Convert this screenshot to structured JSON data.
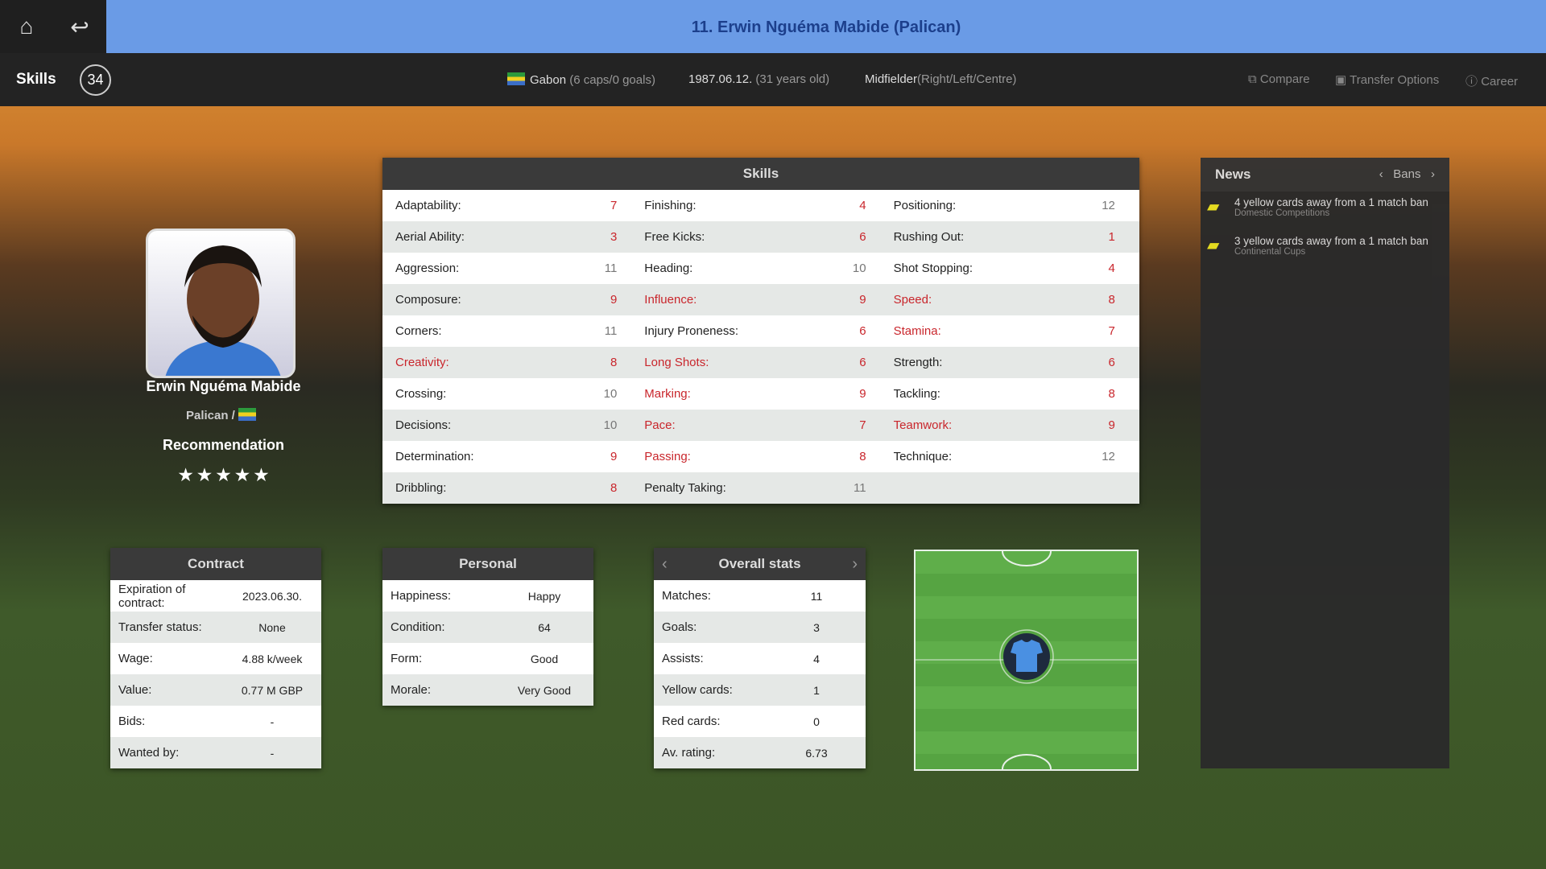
{
  "header": {
    "title": "11. Erwin Nguéma Mabide (Palican)",
    "home_icon": "home-icon",
    "back_icon": "back-icon"
  },
  "subbar": {
    "section": "Skills",
    "rating": "34",
    "nation": "Gabon",
    "nation_detail": "(6 caps/0 goals)",
    "birth": "1987.06.12.",
    "age": "(31 years old)",
    "position": "Midfielder",
    "position_detail": "(Right/Left/Centre)",
    "compare": "Compare",
    "transfer_options": "Transfer Options",
    "career": "Career"
  },
  "player": {
    "name": "Erwin Nguéma Mabide",
    "club": "Palican /",
    "recommendation_label": "Recommendation",
    "stars": 5,
    "star_glyphs": "★ ★ ★ ★ ★"
  },
  "colors": {
    "highlight": "#c9262c",
    "topbar": "#6a9be6"
  },
  "skills": {
    "title": "Skills",
    "rows": [
      [
        {
          "l": "Adaptability:",
          "v": "7",
          "lr": false,
          "vr": true
        },
        {
          "l": "Finishing:",
          "v": "4",
          "lr": false,
          "vr": true
        },
        {
          "l": "Positioning:",
          "v": "12",
          "lr": false,
          "vr": false
        }
      ],
      [
        {
          "l": "Aerial Ability:",
          "v": "3",
          "lr": false,
          "vr": true
        },
        {
          "l": "Free Kicks:",
          "v": "6",
          "lr": false,
          "vr": true
        },
        {
          "l": "Rushing Out:",
          "v": "1",
          "lr": false,
          "vr": true
        }
      ],
      [
        {
          "l": "Aggression:",
          "v": "11",
          "lr": false,
          "vr": false
        },
        {
          "l": "Heading:",
          "v": "10",
          "lr": false,
          "vr": false
        },
        {
          "l": "Shot Stopping:",
          "v": "4",
          "lr": false,
          "vr": true
        }
      ],
      [
        {
          "l": "Composure:",
          "v": "9",
          "lr": false,
          "vr": true
        },
        {
          "l": "Influence:",
          "v": "9",
          "lr": true,
          "vr": true
        },
        {
          "l": "Speed:",
          "v": "8",
          "lr": true,
          "vr": true
        }
      ],
      [
        {
          "l": "Corners:",
          "v": "11",
          "lr": false,
          "vr": false
        },
        {
          "l": "Injury Proneness:",
          "v": "6",
          "lr": false,
          "vr": true
        },
        {
          "l": "Stamina:",
          "v": "7",
          "lr": true,
          "vr": true
        }
      ],
      [
        {
          "l": "Creativity:",
          "v": "8",
          "lr": true,
          "vr": true
        },
        {
          "l": "Long Shots:",
          "v": "6",
          "lr": true,
          "vr": true
        },
        {
          "l": "Strength:",
          "v": "6",
          "lr": false,
          "vr": true
        }
      ],
      [
        {
          "l": "Crossing:",
          "v": "10",
          "lr": false,
          "vr": false
        },
        {
          "l": "Marking:",
          "v": "9",
          "lr": true,
          "vr": true
        },
        {
          "l": "Tackling:",
          "v": "8",
          "lr": false,
          "vr": true
        }
      ],
      [
        {
          "l": "Decisions:",
          "v": "10",
          "lr": false,
          "vr": false
        },
        {
          "l": "Pace:",
          "v": "7",
          "lr": true,
          "vr": true
        },
        {
          "l": "Teamwork:",
          "v": "9",
          "lr": true,
          "vr": true
        }
      ],
      [
        {
          "l": "Determination:",
          "v": "9",
          "lr": false,
          "vr": true
        },
        {
          "l": "Passing:",
          "v": "8",
          "lr": true,
          "vr": true
        },
        {
          "l": "Technique:",
          "v": "12",
          "lr": false,
          "vr": false
        }
      ],
      [
        {
          "l": "Dribbling:",
          "v": "8",
          "lr": false,
          "vr": true
        },
        {
          "l": "Penalty Taking:",
          "v": "11",
          "lr": false,
          "vr": false
        },
        {
          "l": "",
          "v": "",
          "lr": false,
          "vr": false
        }
      ]
    ]
  },
  "news": {
    "title": "News",
    "category": "Bans",
    "items": [
      {
        "text": "4 yellow cards away from a 1 match ban",
        "sub": "Domestic Competitions",
        "icon": "yellow-card-icon"
      },
      {
        "text": "3 yellow cards away from a 1 match ban",
        "sub": "Continental Cups",
        "icon": "yellow-card-icon"
      }
    ]
  },
  "contract": {
    "title": "Contract",
    "rows": [
      {
        "l": "Expiration of contract:",
        "v": "2023.06.30."
      },
      {
        "l": "Transfer status:",
        "v": "None"
      },
      {
        "l": "Wage:",
        "v": "4.88 k/week"
      },
      {
        "l": "Value:",
        "v": "0.77 M GBP"
      },
      {
        "l": "Bids:",
        "v": "-"
      },
      {
        "l": "Wanted by:",
        "v": "-"
      }
    ]
  },
  "personal": {
    "title": "Personal",
    "rows": [
      {
        "l": "Happiness:",
        "v": "Happy"
      },
      {
        "l": "Condition:",
        "v": "64"
      },
      {
        "l": "Form:",
        "v": "Good"
      },
      {
        "l": "Morale:",
        "v": "Very Good"
      }
    ]
  },
  "overall": {
    "title": "Overall stats",
    "rows": [
      {
        "l": "Matches:",
        "v": "11"
      },
      {
        "l": "Goals:",
        "v": "3"
      },
      {
        "l": "Assists:",
        "v": "4"
      },
      {
        "l": "Yellow cards:",
        "v": "1"
      },
      {
        "l": "Red cards:",
        "v": "0"
      },
      {
        "l": "Av. rating:",
        "v": "6.73"
      }
    ]
  }
}
